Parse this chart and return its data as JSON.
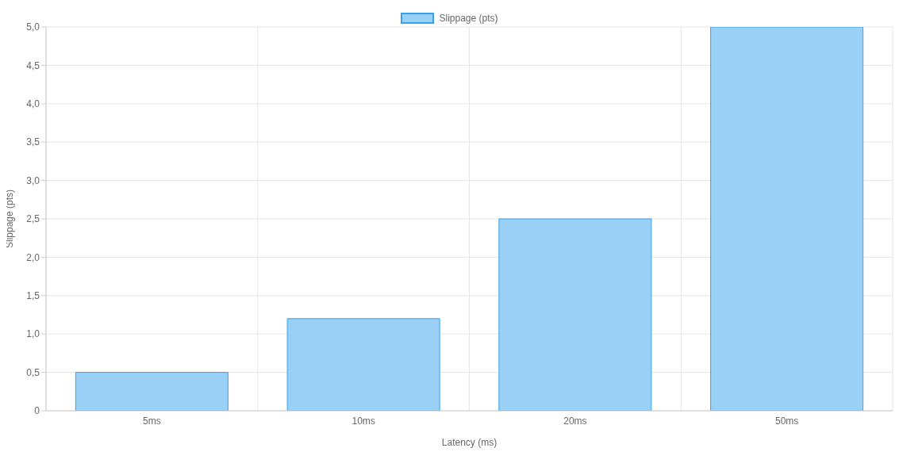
{
  "chart_data": {
    "type": "bar",
    "xlabel": "Latency (ms)",
    "ylabel": "Slippage (pts)",
    "categories": [
      "5ms",
      "10ms",
      "20ms",
      "50ms"
    ],
    "series": [
      {
        "name": "Slippage (pts)",
        "color": "#9ad0f5",
        "values": [
          0.5,
          1.2,
          2.5,
          5.0
        ]
      }
    ],
    "ylim": [
      0,
      5
    ],
    "yticks": [
      0,
      {
        "value": 0.5,
        "label": "0,5"
      },
      {
        "value": 1,
        "label": "1,0"
      },
      {
        "value": 1.5,
        "label": "1,5"
      },
      {
        "value": 2,
        "label": "2,0"
      },
      {
        "value": 2.5,
        "label": "2,5"
      },
      {
        "value": 3,
        "label": "3,0"
      },
      {
        "value": 3.5,
        "label": "3,5"
      },
      {
        "value": 4,
        "label": "4,0"
      },
      {
        "value": 4.5,
        "label": "4,5"
      },
      {
        "value": 5,
        "label": "5,0"
      }
    ],
    "grid": true,
    "legend": "top"
  }
}
